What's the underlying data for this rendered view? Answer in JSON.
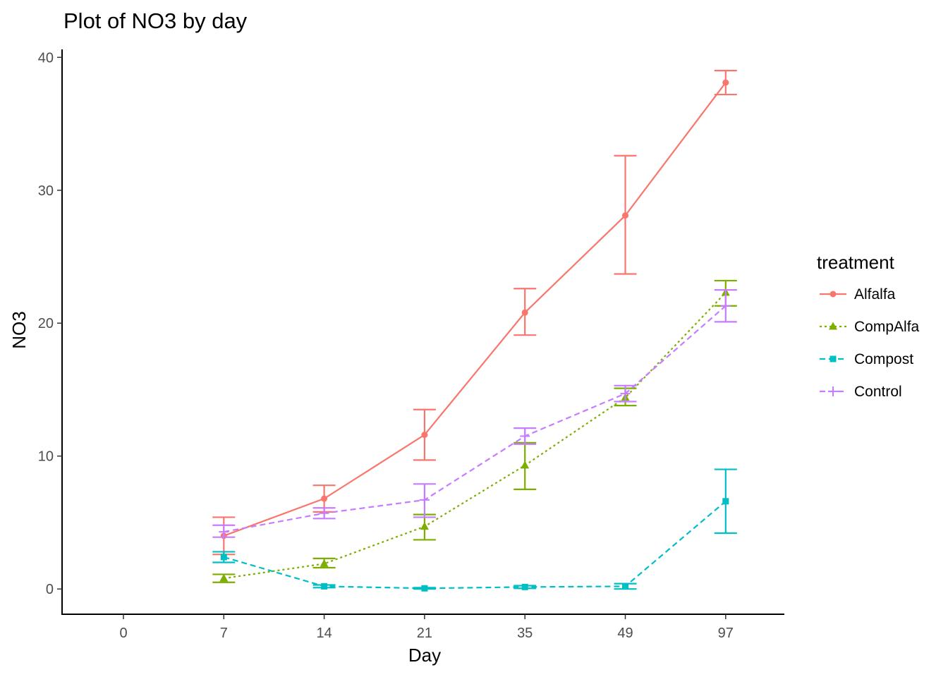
{
  "chart_data": {
    "type": "line",
    "title": "Plot of NO3 by day",
    "xlabel": "Day",
    "ylabel": "NO3",
    "categories": [
      "0",
      "7",
      "14",
      "21",
      "35",
      "49",
      "97"
    ],
    "ylim": [
      -1.9,
      40.6
    ],
    "yticks": [
      0,
      10,
      20,
      30,
      40
    ],
    "grid": false,
    "legend": {
      "title": "treatment",
      "position": "right"
    },
    "series": [
      {
        "name": "Alfalfa",
        "color": "#F8766D",
        "marker": "circle",
        "line": "solid",
        "points": [
          {
            "x": "7",
            "y": 4.0,
            "ymin": 2.6,
            "ymax": 5.4
          },
          {
            "x": "14",
            "y": 6.8,
            "ymin": 5.8,
            "ymax": 7.8
          },
          {
            "x": "21",
            "y": 11.6,
            "ymin": 9.7,
            "ymax": 13.5
          },
          {
            "x": "35",
            "y": 20.8,
            "ymin": 19.1,
            "ymax": 22.6
          },
          {
            "x": "49",
            "y": 28.1,
            "ymin": 23.7,
            "ymax": 32.6
          },
          {
            "x": "97",
            "y": 38.1,
            "ymin": 37.2,
            "ymax": 39.0
          }
        ]
      },
      {
        "name": "CompAlfa",
        "color": "#7CAE00",
        "marker": "triangle",
        "line": "dotted",
        "points": [
          {
            "x": "7",
            "y": 0.8,
            "ymin": 0.5,
            "ymax": 1.1
          },
          {
            "x": "14",
            "y": 1.9,
            "ymin": 1.6,
            "ymax": 2.3
          },
          {
            "x": "21",
            "y": 4.7,
            "ymin": 3.7,
            "ymax": 5.6
          },
          {
            "x": "35",
            "y": 9.3,
            "ymin": 7.5,
            "ymax": 11.0
          },
          {
            "x": "49",
            "y": 14.4,
            "ymin": 13.8,
            "ymax": 15.1
          },
          {
            "x": "97",
            "y": 22.3,
            "ymin": 21.3,
            "ymax": 23.2
          }
        ]
      },
      {
        "name": "Compost",
        "color": "#00BFC4",
        "marker": "square",
        "line": "dashed",
        "points": [
          {
            "x": "7",
            "y": 2.4,
            "ymin": 2.0,
            "ymax": 2.8
          },
          {
            "x": "14",
            "y": 0.2,
            "ymin": 0.1,
            "ymax": 0.3
          },
          {
            "x": "21",
            "y": 0.05,
            "ymin": 0.0,
            "ymax": 0.1
          },
          {
            "x": "35",
            "y": 0.15,
            "ymin": 0.05,
            "ymax": 0.25
          },
          {
            "x": "49",
            "y": 0.2,
            "ymin": 0.0,
            "ymax": 0.4
          },
          {
            "x": "97",
            "y": 6.6,
            "ymin": 4.2,
            "ymax": 9.0
          }
        ]
      },
      {
        "name": "Control",
        "color": "#C77CFF",
        "marker": "plus",
        "line": "dashed",
        "points": [
          {
            "x": "7",
            "y": 4.3,
            "ymin": 3.9,
            "ymax": 4.8
          },
          {
            "x": "14",
            "y": 5.7,
            "ymin": 5.3,
            "ymax": 6.1
          },
          {
            "x": "21",
            "y": 6.7,
            "ymin": 5.4,
            "ymax": 7.9
          },
          {
            "x": "35",
            "y": 11.5,
            "ymin": 10.9,
            "ymax": 12.1
          },
          {
            "x": "49",
            "y": 14.7,
            "ymin": 14.1,
            "ymax": 15.3
          },
          {
            "x": "97",
            "y": 21.3,
            "ymin": 20.1,
            "ymax": 22.5
          }
        ]
      }
    ]
  }
}
